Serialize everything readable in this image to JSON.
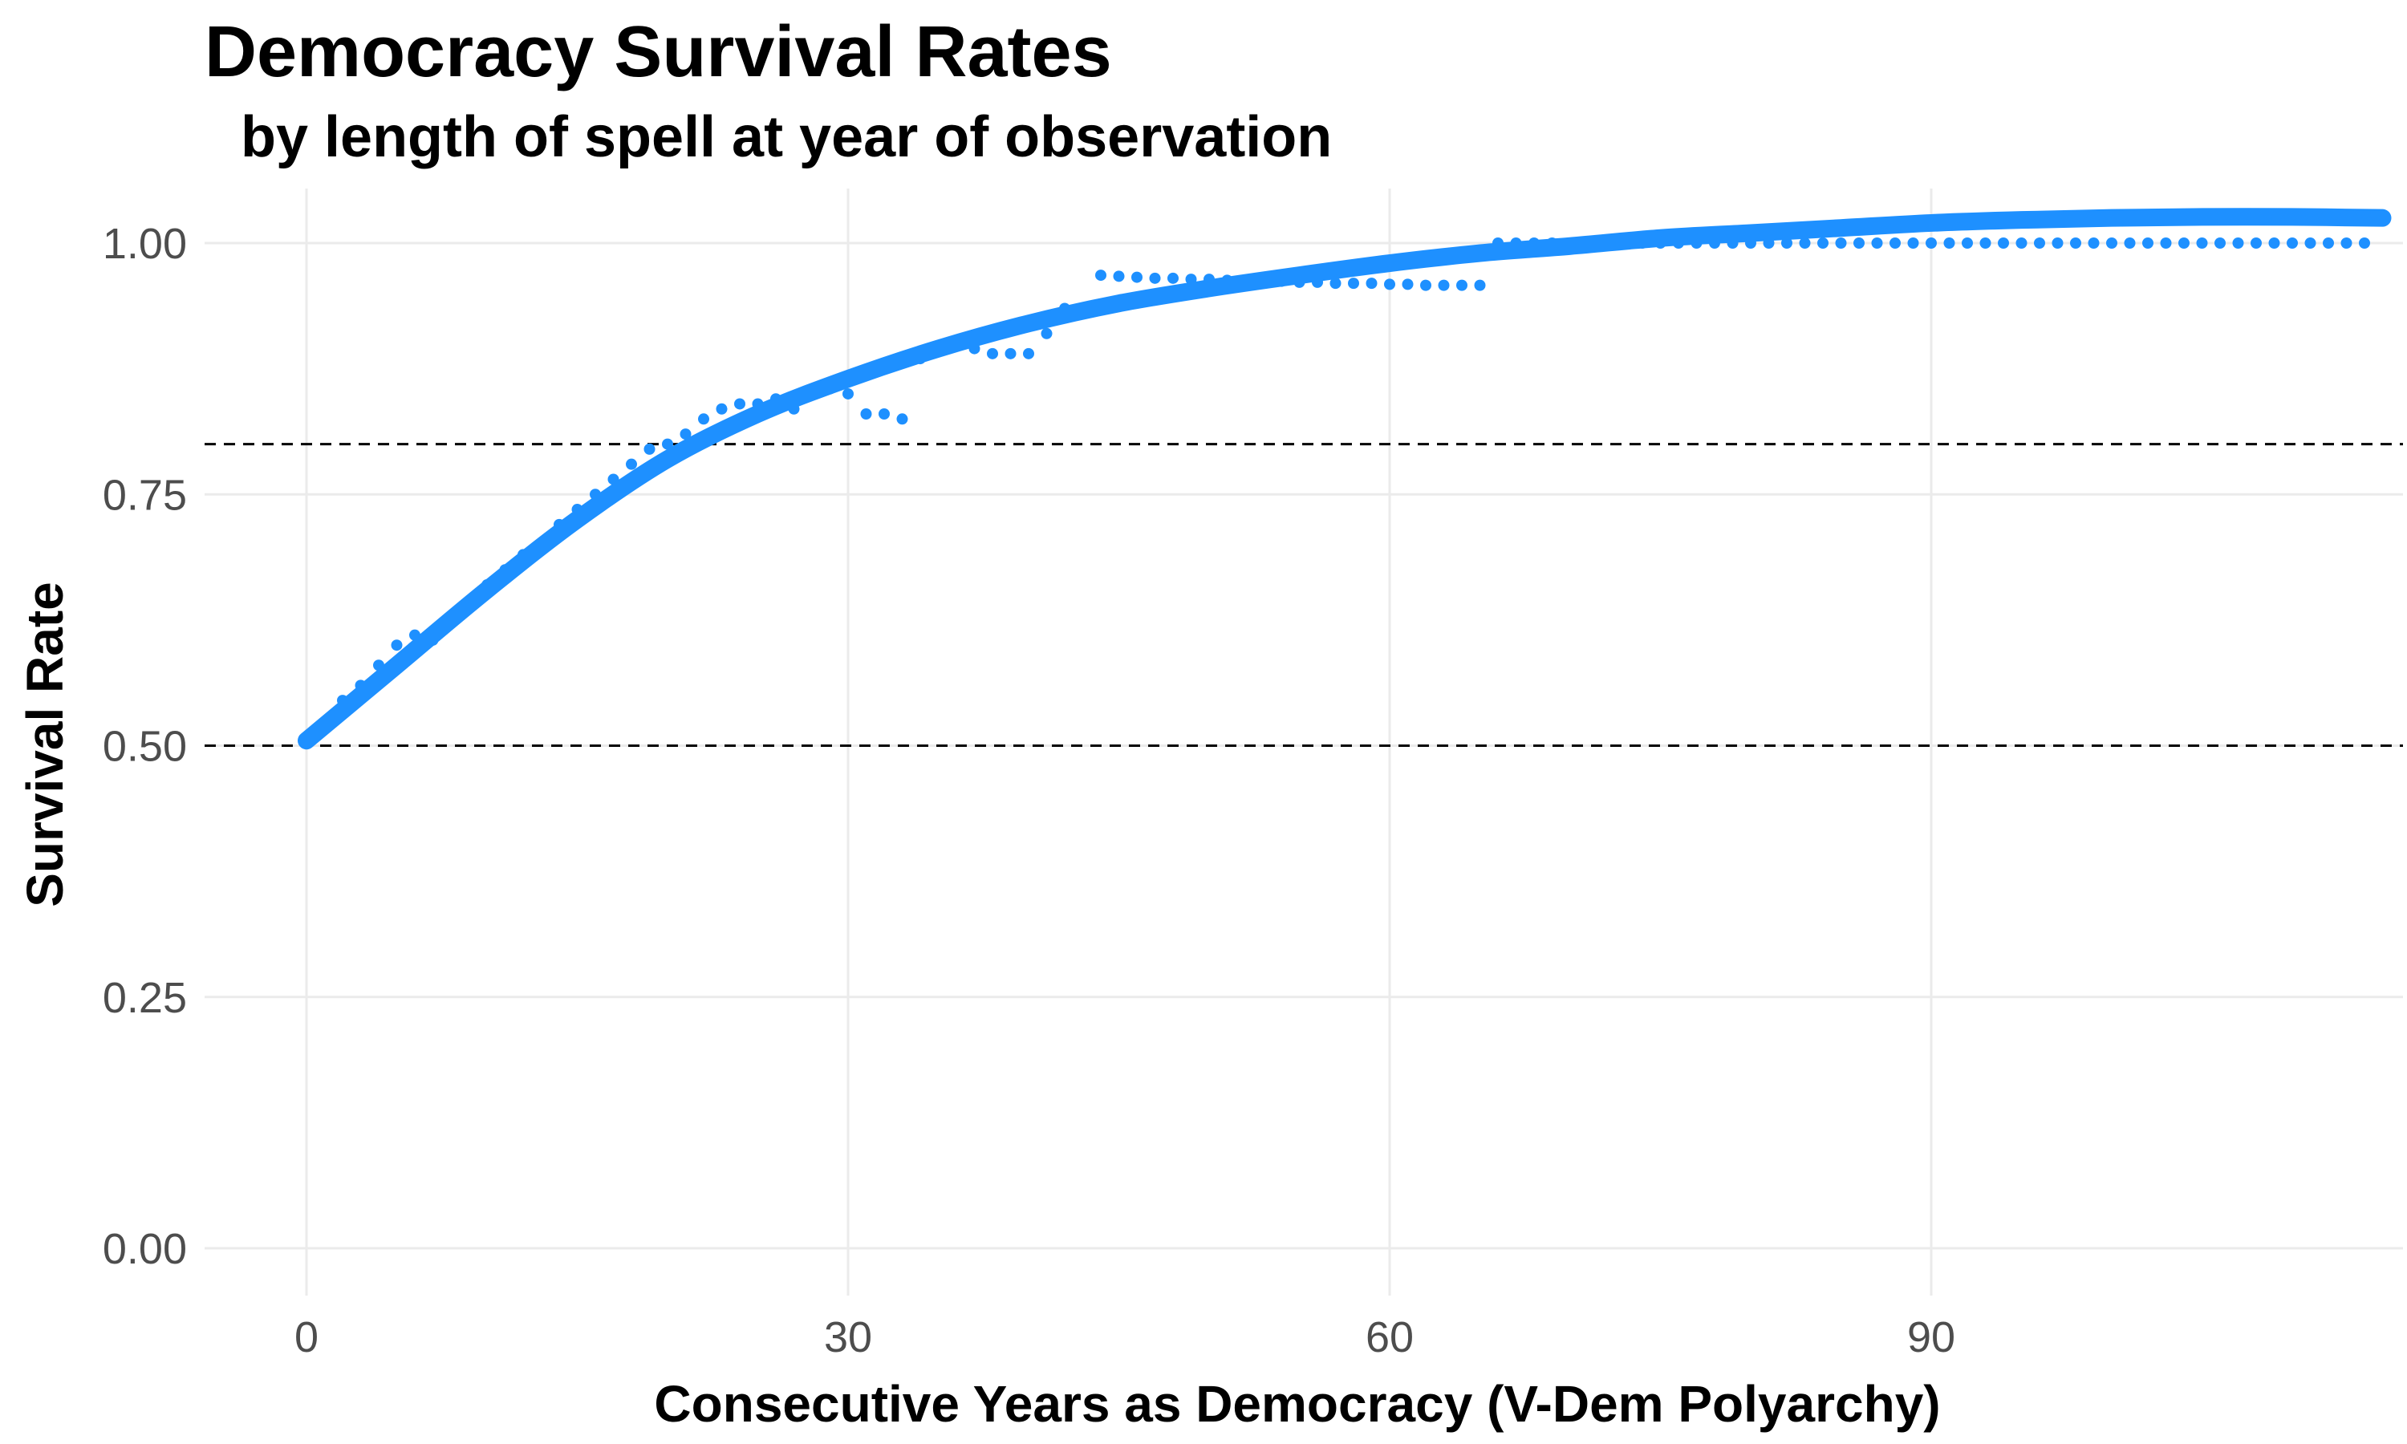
{
  "chart_data": {
    "type": "scatter",
    "title": "Democracy Survival Rates",
    "subtitle": "by length of spell at year of observation",
    "xlabel": "Consecutive Years as Democracy (V-Dem Polyarchy)",
    "ylabel": "Survival Rate",
    "xlim": [
      -5,
      115
    ],
    "ylim": [
      -0.04,
      1.04
    ],
    "x_ticks": [
      0,
      30,
      60,
      90
    ],
    "x_tick_labels": [
      "0",
      "30",
      "60",
      "90"
    ],
    "y_ticks": [
      0,
      0.25,
      0.5,
      0.75,
      1.0
    ],
    "y_tick_labels": [
      "0.00",
      "0.25",
      "0.50",
      "0.75",
      "1.00"
    ],
    "reference_lines_y": [
      0.5,
      0.8
    ],
    "grid": true,
    "point_color": "#1E90FF",
    "fit_color": "#1E90FF",
    "points": [
      [
        0,
        0.505
      ],
      [
        1,
        0.52
      ],
      [
        2,
        0.545
      ],
      [
        3,
        0.56
      ],
      [
        4,
        0.58
      ],
      [
        5,
        0.6
      ],
      [
        6,
        0.61
      ],
      [
        7,
        0.605
      ],
      [
        8,
        0.625
      ],
      [
        9,
        0.64
      ],
      [
        10,
        0.66
      ],
      [
        11,
        0.675
      ],
      [
        12,
        0.69
      ],
      [
        13,
        0.695
      ],
      [
        14,
        0.72
      ],
      [
        15,
        0.735
      ],
      [
        16,
        0.75
      ],
      [
        17,
        0.765
      ],
      [
        18,
        0.78
      ],
      [
        19,
        0.795
      ],
      [
        20,
        0.8
      ],
      [
        21,
        0.81
      ],
      [
        22,
        0.825
      ],
      [
        23,
        0.835
      ],
      [
        24,
        0.84
      ],
      [
        25,
        0.84
      ],
      [
        26,
        0.845
      ],
      [
        27,
        0.835
      ],
      [
        28,
        0.855
      ],
      [
        29,
        0.855
      ],
      [
        30,
        0.85
      ],
      [
        31,
        0.83
      ],
      [
        32,
        0.83
      ],
      [
        33,
        0.825
      ],
      [
        34,
        0.885
      ],
      [
        35,
        0.895
      ],
      [
        36,
        0.9
      ],
      [
        37,
        0.895
      ],
      [
        38,
        0.89
      ],
      [
        39,
        0.89
      ],
      [
        40,
        0.89
      ],
      [
        41,
        0.91
      ],
      [
        42,
        0.935
      ],
      [
        43,
        0.935
      ],
      [
        44,
        0.968
      ],
      [
        45,
        0.967
      ],
      [
        46,
        0.966
      ],
      [
        47,
        0.965
      ],
      [
        48,
        0.965
      ],
      [
        49,
        0.964
      ],
      [
        50,
        0.964
      ],
      [
        51,
        0.963
      ],
      [
        52,
        0.963
      ],
      [
        53,
        0.962
      ],
      [
        54,
        0.962
      ],
      [
        55,
        0.961
      ],
      [
        56,
        0.961
      ],
      [
        57,
        0.96
      ],
      [
        58,
        0.96
      ],
      [
        59,
        0.96
      ],
      [
        60,
        0.959
      ],
      [
        61,
        0.959
      ],
      [
        62,
        0.958
      ],
      [
        63,
        0.958
      ],
      [
        64,
        0.958
      ],
      [
        65,
        0.958
      ],
      [
        66,
        1.0
      ],
      [
        67,
        1.0
      ],
      [
        68,
        1.0
      ],
      [
        69,
        1.0
      ],
      [
        70,
        1.0
      ],
      [
        71,
        1.0
      ],
      [
        72,
        1.0
      ],
      [
        73,
        1.0
      ],
      [
        74,
        1.0
      ],
      [
        75,
        1.0
      ],
      [
        76,
        1.0
      ],
      [
        77,
        1.0
      ],
      [
        78,
        1.0
      ],
      [
        79,
        1.0
      ],
      [
        80,
        1.0
      ],
      [
        81,
        1.0
      ],
      [
        82,
        1.0
      ],
      [
        83,
        1.0
      ],
      [
        84,
        1.0
      ],
      [
        85,
        1.0
      ],
      [
        86,
        1.0
      ],
      [
        87,
        1.0
      ],
      [
        88,
        1.0
      ],
      [
        89,
        1.0
      ],
      [
        90,
        1.0
      ],
      [
        91,
        1.0
      ],
      [
        92,
        1.0
      ],
      [
        93,
        1.0
      ],
      [
        94,
        1.0
      ],
      [
        95,
        1.0
      ],
      [
        96,
        1.0
      ],
      [
        97,
        1.0
      ],
      [
        98,
        1.0
      ],
      [
        99,
        1.0
      ],
      [
        100,
        1.0
      ],
      [
        101,
        1.0
      ],
      [
        102,
        1.0
      ],
      [
        103,
        1.0
      ],
      [
        104,
        1.0
      ],
      [
        105,
        1.0
      ],
      [
        106,
        1.0
      ],
      [
        107,
        1.0
      ],
      [
        108,
        1.0
      ],
      [
        109,
        1.0
      ],
      [
        110,
        1.0
      ],
      [
        111,
        1.0
      ],
      [
        112,
        1.0
      ],
      [
        113,
        1.0
      ],
      [
        114,
        1.0
      ]
    ],
    "fit_curve": [
      [
        0,
        0.505
      ],
      [
        5,
        0.58
      ],
      [
        10,
        0.655
      ],
      [
        15,
        0.725
      ],
      [
        20,
        0.785
      ],
      [
        25,
        0.83
      ],
      [
        30,
        0.865
      ],
      [
        35,
        0.895
      ],
      [
        40,
        0.92
      ],
      [
        45,
        0.94
      ],
      [
        50,
        0.955
      ],
      [
        55,
        0.968
      ],
      [
        60,
        0.98
      ],
      [
        65,
        0.99
      ],
      [
        70,
        0.997
      ],
      [
        75,
        1.005
      ],
      [
        80,
        1.01
      ],
      [
        85,
        1.015
      ],
      [
        90,
        1.02
      ],
      [
        95,
        1.023
      ],
      [
        100,
        1.025
      ],
      [
        105,
        1.026
      ],
      [
        110,
        1.026
      ],
      [
        115,
        1.025
      ]
    ]
  }
}
